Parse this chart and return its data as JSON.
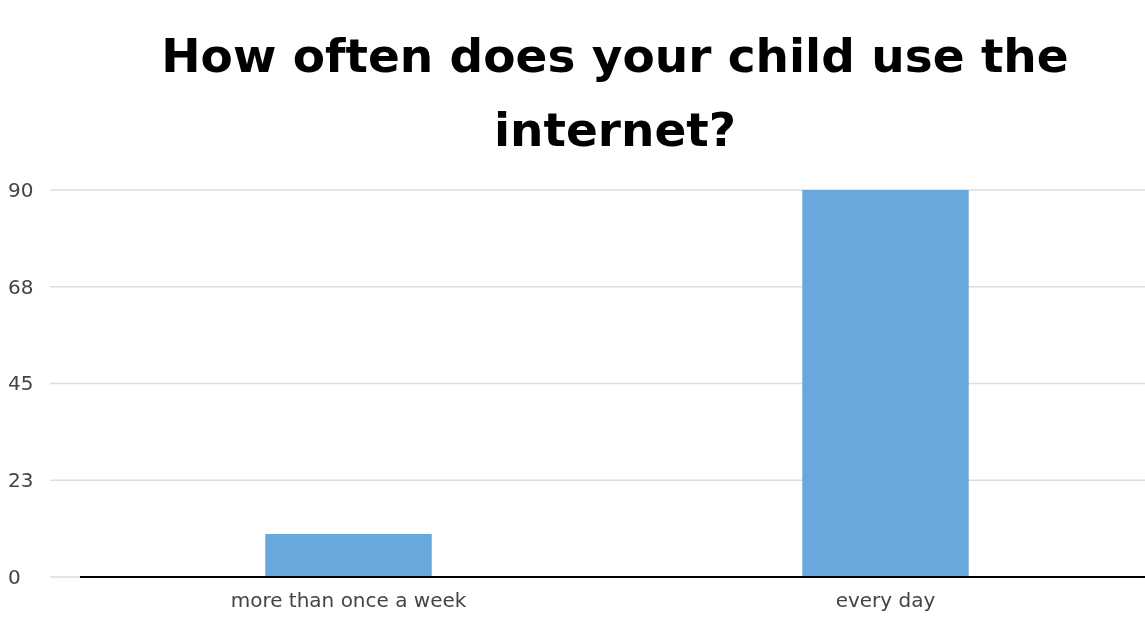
{
  "chart_data": {
    "type": "bar",
    "title": "How often does your child use the internet?",
    "categories": [
      "more than once a week",
      "every day"
    ],
    "values": [
      10,
      90
    ],
    "color": "#68a8dc",
    "ylim": [
      0,
      90
    ],
    "yticks": [
      0,
      {
        "value": 22.5,
        "label": "23"
      },
      45,
      {
        "value": 67.5,
        "label": "68"
      },
      90
    ],
    "grid": "y"
  }
}
